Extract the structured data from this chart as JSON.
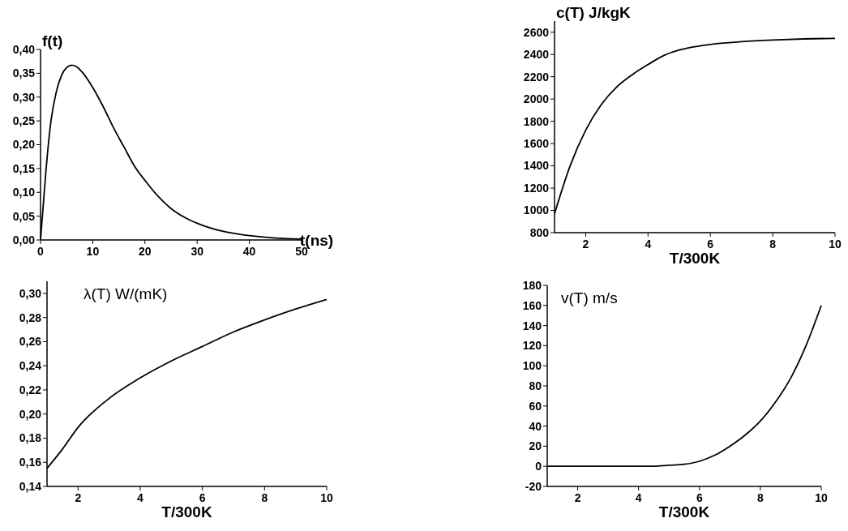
{
  "chart_data": [
    {
      "type": "line",
      "ylabel": "f(t)",
      "xlabel": "t(ns)",
      "xlim": [
        0,
        50
      ],
      "xticks": [
        0,
        10,
        20,
        30,
        40,
        50
      ],
      "ylim": [
        0,
        0.4
      ],
      "yticks": [
        {
          "value": 0,
          "label": "0,00"
        },
        {
          "value": 0.05,
          "label": "0,05"
        },
        {
          "value": 0.1,
          "label": "0,10"
        },
        {
          "value": 0.15,
          "label": "0,15"
        },
        {
          "value": 0.2,
          "label": "0,20"
        },
        {
          "value": 0.25,
          "label": "0,25"
        },
        {
          "value": 0.3,
          "label": "0,30"
        },
        {
          "value": 0.35,
          "label": "0,35"
        },
        {
          "value": 0.4,
          "label": "0,40"
        }
      ],
      "grid": false,
      "line_style": "solid",
      "series": [
        {
          "color": "#000000",
          "x": [
            0,
            0.5,
            1,
            2,
            3,
            4,
            5,
            6,
            7,
            8,
            10,
            12,
            14,
            16,
            18,
            20,
            22,
            25,
            28,
            30,
            35,
            40,
            45,
            50
          ],
          "values": [
            0,
            0.07,
            0.14,
            0.25,
            0.31,
            0.345,
            0.362,
            0.367,
            0.363,
            0.352,
            0.32,
            0.28,
            0.235,
            0.195,
            0.155,
            0.125,
            0.098,
            0.066,
            0.045,
            0.035,
            0.018,
            0.009,
            0.004,
            0.002
          ]
        }
      ]
    },
    {
      "type": "line",
      "ylabel": "c(T) J/kgK",
      "xlabel": "T/300K",
      "xlim": [
        1,
        10
      ],
      "xticks": [
        2,
        4,
        6,
        8,
        10
      ],
      "ylim": [
        800,
        2700
      ],
      "yticks": [
        800,
        1000,
        1200,
        1400,
        1600,
        1800,
        2000,
        2200,
        2400,
        2600
      ],
      "grid": false,
      "line_style": "solid",
      "series": [
        {
          "color": "#000000",
          "x": [
            1,
            1.5,
            2,
            2.5,
            3,
            3.5,
            4,
            4.5,
            5,
            5.5,
            6,
            7,
            8,
            9,
            10
          ],
          "values": [
            970,
            1400,
            1720,
            1950,
            2110,
            2220,
            2310,
            2390,
            2440,
            2470,
            2490,
            2515,
            2530,
            2540,
            2545
          ]
        }
      ]
    },
    {
      "type": "line",
      "ylabel": "λ(T) W/(mK)",
      "xlabel": "T/300K",
      "xlim": [
        1,
        10
      ],
      "xticks": [
        2,
        4,
        6,
        8,
        10
      ],
      "ylim": [
        0.14,
        0.31
      ],
      "yticks": [
        {
          "value": 0.14,
          "label": "0,14"
        },
        {
          "value": 0.16,
          "label": "0,16"
        },
        {
          "value": 0.18,
          "label": "0,18"
        },
        {
          "value": 0.2,
          "label": "0,20"
        },
        {
          "value": 0.22,
          "label": "0,22"
        },
        {
          "value": 0.24,
          "label": "0,24"
        },
        {
          "value": 0.26,
          "label": "0,26"
        },
        {
          "value": 0.28,
          "label": "0,28"
        },
        {
          "value": 0.3,
          "label": "0,30"
        }
      ],
      "grid": false,
      "line_style": "solid",
      "series": [
        {
          "color": "#000000",
          "x": [
            1,
            1.5,
            2,
            3,
            4,
            5,
            6,
            7,
            8,
            9,
            10
          ],
          "values": [
            0.155,
            0.171,
            0.189,
            0.213,
            0.23,
            0.244,
            0.256,
            0.268,
            0.278,
            0.287,
            0.295
          ]
        }
      ]
    },
    {
      "type": "line",
      "ylabel": "v(T) m/s",
      "xlabel": "T/300K",
      "xlim": [
        1,
        10
      ],
      "xticks": [
        2,
        4,
        6,
        8,
        10
      ],
      "ylim": [
        -20,
        180
      ],
      "yticks": [
        -20,
        0,
        20,
        40,
        60,
        80,
        100,
        120,
        140,
        160,
        180
      ],
      "grid": false,
      "line_style": "solid",
      "series": [
        {
          "color": "#000000",
          "x": [
            1,
            2,
            3,
            4,
            4.5,
            5,
            5.5,
            6,
            6.5,
            7,
            7.5,
            8,
            8.5,
            9,
            9.5,
            10
          ],
          "values": [
            0,
            0,
            0,
            0,
            0,
            1,
            2,
            5,
            11,
            20,
            31,
            45,
            64,
            88,
            120,
            160
          ]
        }
      ]
    }
  ]
}
